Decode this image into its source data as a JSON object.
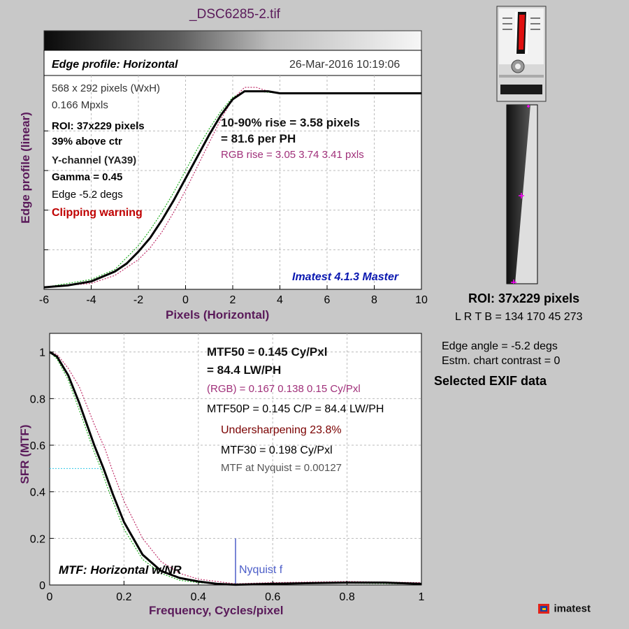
{
  "title": "_DSC6285-2.tif",
  "edge_plot": {
    "header_title": "Edge profile: Horizontal",
    "date": "26-Mar-2016 10:19:06",
    "size_text": "568 x 292 pixels (WxH)",
    "mpxls": "0.166 Mpxls",
    "roi": "ROI:  37x229 pixels",
    "above_ctr": "39% above ctr",
    "channel": "Y-channel  (YA39)",
    "gamma": "Gamma = 0.45",
    "edge_deg": "Edge -5.2 degs",
    "clip_warning": "Clipping warning",
    "rise_line1": "10-90% rise = 3.58 pixels",
    "rise_line2": "= 81.6 per PH",
    "rgb_rise": "RGB rise = 3.05  3.74  3.41 pxls",
    "version": "Imatest 4.1.3 Master",
    "ylabel": "Edge profile (linear)",
    "xlabel": "Pixels (Horizontal)",
    "xticks": [
      "-6",
      "-4",
      "-2",
      "0",
      "2",
      "4",
      "6",
      "8",
      "10"
    ]
  },
  "mtf_plot": {
    "mtf50_line1": "MTF50 = 0.145 Cy/Pxl",
    "mtf50_line2": "= 84.4 LW/PH",
    "rgb_mtf50": "(RGB) = 0.167  0.138  0.15 Cy/Pxl",
    "mtf50p": "MTF50P = 0.145 C/P = 84.4 LW/PH",
    "undersharpening": "Undersharpening 23.8%",
    "mtf30": "MTF30 = 0.198 Cy/Pxl",
    "nyquist_mtf": "MTF at Nyquist = 0.00127",
    "plot_label": "MTF: Horizontal w/NR",
    "nyquist_label": "Nyquist f",
    "ylabel": "SFR (MTF)",
    "xlabel": "Frequency, Cycles/pixel",
    "xticks": [
      "0",
      "0.2",
      "0.4",
      "0.6",
      "0.8",
      "1"
    ],
    "yticks": [
      "0",
      "0.2",
      "0.4",
      "0.6",
      "0.8",
      "1"
    ]
  },
  "right_panel": {
    "roi": "ROI:  37x229 pixels",
    "lrtb": "L R  T B = 134 170  45 273",
    "edge_angle": "Edge angle = -5.2 degs",
    "chart_contrast": "Estm. chart contrast = 0",
    "exif": "Selected EXIF data",
    "logo_text": "imatest"
  },
  "colors": {
    "label_purple": "#5a1a5a",
    "red_channel": "#c0306a",
    "green_channel": "#20b020",
    "nyquist_blue": "#4c5ec8"
  },
  "chart_data": [
    {
      "type": "line",
      "title": "Edge profile: Horizontal",
      "xlabel": "Pixels (Horizontal)",
      "ylabel": "Edge profile (linear)",
      "xlim": [
        -6,
        10
      ],
      "ylim": [
        0,
        1.08
      ],
      "grid": true,
      "series": [
        {
          "values_x": [
            -6,
            -5,
            -4,
            -3,
            -2.5,
            -2,
            -1.5,
            -1,
            -0.5,
            0,
            0.5,
            1,
            1.5,
            2,
            2.5,
            3,
            3.5,
            4,
            5,
            6,
            7,
            8,
            9,
            10
          ],
          "values_y": [
            0.01,
            0.02,
            0.04,
            0.09,
            0.13,
            0.19,
            0.26,
            0.35,
            0.45,
            0.56,
            0.67,
            0.78,
            0.88,
            0.96,
            1.0,
            1.0,
            1.0,
            0.99,
            0.99,
            0.99,
            0.99,
            0.99,
            0.99,
            0.99
          ]
        },
        {
          "values_x": [
            -6,
            -4,
            -3,
            -2,
            -1.5,
            -1,
            -0.5,
            0,
            0.5,
            1,
            1.5,
            2,
            2.5,
            3,
            3.5,
            4,
            10
          ],
          "values_y": [
            0.01,
            0.03,
            0.07,
            0.15,
            0.21,
            0.29,
            0.39,
            0.5,
            0.62,
            0.74,
            0.86,
            0.96,
            1.02,
            1.02,
            1.0,
            0.99,
            0.99
          ]
        },
        {
          "values_x": [
            -6,
            -4,
            -3,
            -2,
            -1.5,
            -1,
            -0.5,
            0,
            0.5,
            1,
            1.5,
            2,
            2.5,
            3,
            4,
            10
          ],
          "values_y": [
            0.01,
            0.05,
            0.1,
            0.22,
            0.3,
            0.39,
            0.49,
            0.6,
            0.71,
            0.81,
            0.9,
            0.97,
            1.0,
            1.0,
            0.99,
            0.99
          ]
        }
      ]
    },
    {
      "type": "line",
      "title": "MTF: Horizontal w/NR",
      "xlabel": "Frequency, Cycles/pixel",
      "ylabel": "SFR (MTF)",
      "xlim": [
        0,
        1
      ],
      "ylim": [
        0,
        1.08
      ],
      "grid": true,
      "series": [
        {
          "values_x": [
            0,
            0.02,
            0.05,
            0.08,
            0.1,
            0.12,
            0.145,
            0.17,
            0.2,
            0.25,
            0.3,
            0.35,
            0.4,
            0.45,
            0.5,
            0.6,
            0.7,
            0.8,
            0.9,
            1.0
          ],
          "values_y": [
            1.0,
            0.98,
            0.9,
            0.78,
            0.69,
            0.6,
            0.5,
            0.39,
            0.27,
            0.13,
            0.06,
            0.03,
            0.015,
            0.005,
            0.0013,
            0.005,
            0.008,
            0.01,
            0.01,
            0.005
          ]
        },
        {
          "values_x": [
            0,
            0.02,
            0.05,
            0.08,
            0.1,
            0.12,
            0.15,
            0.167,
            0.2,
            0.25,
            0.3,
            0.35,
            0.4,
            0.5,
            0.6,
            0.8,
            1.0
          ],
          "values_y": [
            1.0,
            0.99,
            0.93,
            0.85,
            0.77,
            0.69,
            0.58,
            0.5,
            0.36,
            0.2,
            0.1,
            0.05,
            0.025,
            0.005,
            0.01,
            0.015,
            0.01
          ]
        },
        {
          "values_x": [
            0,
            0.02,
            0.05,
            0.08,
            0.1,
            0.12,
            0.138,
            0.16,
            0.2,
            0.25,
            0.3,
            0.35,
            0.4,
            0.5,
            0.6,
            0.8,
            1.0
          ],
          "values_y": [
            1.0,
            0.97,
            0.88,
            0.75,
            0.66,
            0.57,
            0.5,
            0.4,
            0.24,
            0.11,
            0.05,
            0.02,
            0.01,
            0.002,
            0.005,
            0.008,
            0.004
          ]
        }
      ],
      "annotations": [
        {
          "text": "Nyquist f",
          "x": 0.5
        }
      ]
    }
  ]
}
